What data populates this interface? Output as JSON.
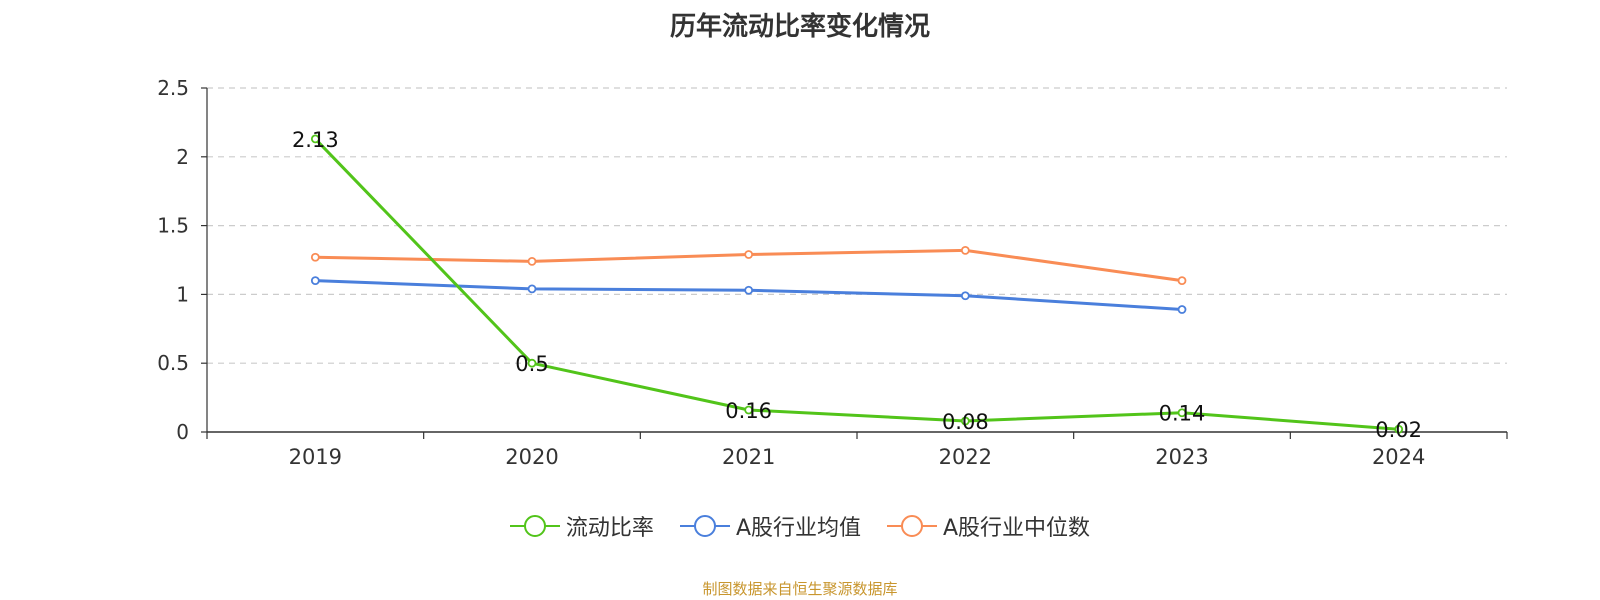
{
  "chart_data": {
    "type": "line",
    "title": "历年流动比率变化情况",
    "categories": [
      "2019",
      "2020",
      "2021",
      "2022",
      "2023",
      "2024"
    ],
    "ylim": [
      0,
      2.5
    ],
    "yticks": [
      "0",
      "0.5",
      "1",
      "1.5",
      "2",
      "2.5"
    ],
    "grid": true,
    "legend_position": "bottom",
    "series": [
      {
        "name": "流动比率",
        "color": "#52c41a",
        "values": [
          2.13,
          0.5,
          0.16,
          0.08,
          0.14,
          0.02
        ],
        "labels": [
          "2.13",
          "0.5",
          "0.16",
          "0.08",
          "0.14",
          "0.02"
        ]
      },
      {
        "name": "A股行业均值",
        "color": "#4a7fdc",
        "values": [
          1.1,
          1.04,
          1.03,
          0.99,
          0.89,
          null
        ]
      },
      {
        "name": "A股行业中位数",
        "color": "#f98c55",
        "values": [
          1.27,
          1.24,
          1.29,
          1.32,
          1.1,
          null
        ]
      }
    ]
  },
  "source": "制图数据来自恒生聚源数据库"
}
